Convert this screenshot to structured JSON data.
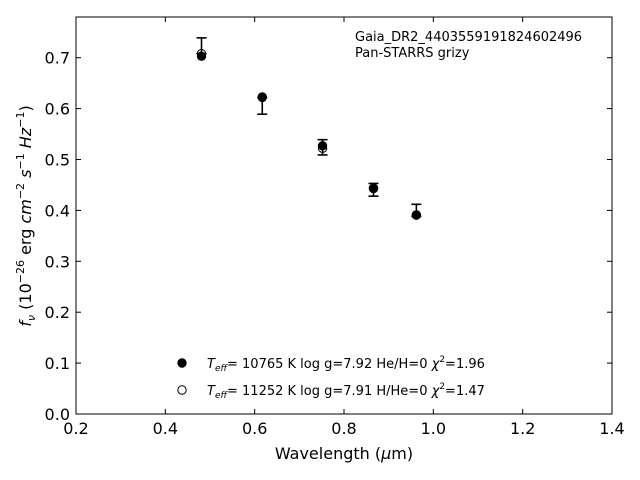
{
  "chart_data": {
    "type": "scatter",
    "annotation_lines": [
      "Gaia_DR2_4403559191824602496",
      "Pan-STARRS grizy"
    ],
    "xlabel": "Wavelength (μm)",
    "ylabel": "fν (10⁻²⁶ erg cm⁻² s⁻¹ Hz⁻¹)",
    "xlim": [
      0.2,
      1.4
    ],
    "ylim": [
      0.0,
      0.78
    ],
    "xticks": [
      0.2,
      0.4,
      0.6,
      0.8,
      1.0,
      1.2,
      1.4
    ],
    "yticks": [
      0.0,
      0.1,
      0.2,
      0.3,
      0.4,
      0.5,
      0.6,
      0.7
    ],
    "grid": false,
    "legend_placement": "lower-center",
    "observed": {
      "x": [
        0.481,
        0.617,
        0.752,
        0.866,
        0.962
      ],
      "y": [
        0.708,
        0.622,
        0.524,
        0.445,
        0.392
      ],
      "yerr_low": [
        0.708,
        0.589,
        0.509,
        0.428,
        0.388
      ],
      "yerr_high": [
        0.739,
        0.622,
        0.539,
        0.453,
        0.412
      ]
    },
    "series": [
      {
        "name": "T_eff= 10765 K  log g=7.92  He/H=0  χ²=1.96",
        "marker": "filled",
        "x": [
          0.481,
          0.617,
          0.752,
          0.866,
          0.962
        ],
        "y": [
          0.703,
          0.623,
          0.527,
          0.444,
          0.391
        ]
      },
      {
        "name": "T_eff= 11252 K  log g=7.91  H/He=0  χ²=1.47",
        "marker": "open",
        "x": [
          0.481,
          0.617,
          0.752,
          0.866,
          0.962
        ],
        "y": [
          0.708,
          0.622,
          0.522,
          0.443,
          0.391
        ]
      }
    ],
    "legend": [
      {
        "teff": "10765",
        "logg": "7.92",
        "comp_label": "He/H=0",
        "chi2": "1.96",
        "marker": "filled"
      },
      {
        "teff": "11252",
        "logg": "7.91",
        "comp_label": "H/He=0",
        "chi2": "1.47",
        "marker": "open"
      }
    ]
  }
}
